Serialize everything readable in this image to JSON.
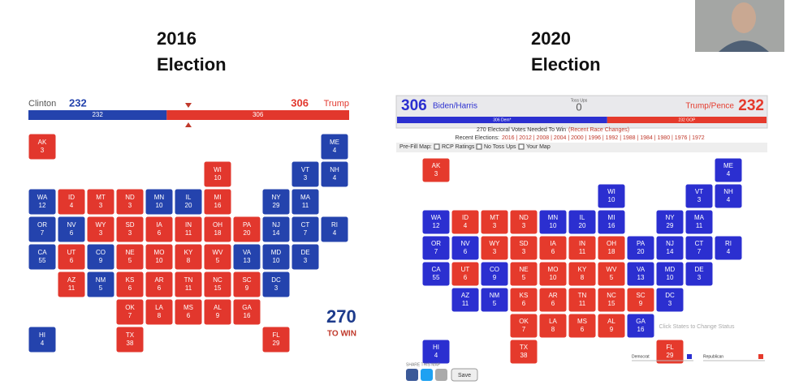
{
  "states": [
    {
      "abbr": "AK",
      "ev": 3
    },
    {
      "abbr": "ME",
      "ev": 4
    },
    {
      "abbr": "WI",
      "ev": 10
    },
    {
      "abbr": "VT",
      "ev": 3
    },
    {
      "abbr": "NH",
      "ev": 4
    },
    {
      "abbr": "WA",
      "ev": 12
    },
    {
      "abbr": "ID",
      "ev": 4
    },
    {
      "abbr": "MT",
      "ev": 3
    },
    {
      "abbr": "ND",
      "ev": 3
    },
    {
      "abbr": "MN",
      "ev": 10
    },
    {
      "abbr": "IL",
      "ev": 20
    },
    {
      "abbr": "MI",
      "ev": 16
    },
    {
      "abbr": "NY",
      "ev": 29
    },
    {
      "abbr": "MA",
      "ev": 11
    },
    {
      "abbr": "OR",
      "ev": 7
    },
    {
      "abbr": "NV",
      "ev": 6
    },
    {
      "abbr": "WY",
      "ev": 3
    },
    {
      "abbr": "SD",
      "ev": 3
    },
    {
      "abbr": "IA",
      "ev": 6
    },
    {
      "abbr": "IN",
      "ev": 11
    },
    {
      "abbr": "OH",
      "ev": 18
    },
    {
      "abbr": "PA",
      "ev": 20
    },
    {
      "abbr": "NJ",
      "ev": 14
    },
    {
      "abbr": "CT",
      "ev": 7
    },
    {
      "abbr": "RI",
      "ev": 4
    },
    {
      "abbr": "CA",
      "ev": 55
    },
    {
      "abbr": "UT",
      "ev": 6
    },
    {
      "abbr": "CO",
      "ev": 9
    },
    {
      "abbr": "NE",
      "ev": 5
    },
    {
      "abbr": "MO",
      "ev": 10
    },
    {
      "abbr": "KY",
      "ev": 8
    },
    {
      "abbr": "WV",
      "ev": 5
    },
    {
      "abbr": "VA",
      "ev": 13
    },
    {
      "abbr": "MD",
      "ev": 10
    },
    {
      "abbr": "DE",
      "ev": 3
    },
    {
      "abbr": "AZ",
      "ev": 11
    },
    {
      "abbr": "NM",
      "ev": 5
    },
    {
      "abbr": "KS",
      "ev": 6
    },
    {
      "abbr": "AR",
      "ev": 6
    },
    {
      "abbr": "TN",
      "ev": 11
    },
    {
      "abbr": "NC",
      "ev": 15
    },
    {
      "abbr": "SC",
      "ev": 9
    },
    {
      "abbr": "DC",
      "ev": 3
    },
    {
      "abbr": "OK",
      "ev": 7
    },
    {
      "abbr": "LA",
      "ev": 8
    },
    {
      "abbr": "MS",
      "ev": 6
    },
    {
      "abbr": "AL",
      "ev": 9
    },
    {
      "abbr": "GA",
      "ev": 16
    },
    {
      "abbr": "HI",
      "ev": 4
    },
    {
      "abbr": "TX",
      "ev": 38
    },
    {
      "abbr": "FL",
      "ev": 29
    }
  ],
  "left": {
    "title_year": "2016",
    "title_word": "Election",
    "dem_name": "Clinton",
    "dem_ev": 232,
    "rep_ev": 306,
    "rep_name": "Trump",
    "dem_color": "#2443ad",
    "rep_color": "#e2372d",
    "logo_top": "270",
    "logo_bottom": "TO WIN",
    "state_colors": [
      "#e2372d",
      "#2443ad",
      "#e2372d",
      "#2443ad",
      "#2443ad",
      "#2443ad",
      "#e2372d",
      "#e2372d",
      "#e2372d",
      "#2443ad",
      "#2443ad",
      "#e2372d",
      "#2443ad",
      "#2443ad",
      "#2443ad",
      "#2443ad",
      "#e2372d",
      "#e2372d",
      "#e2372d",
      "#e2372d",
      "#e2372d",
      "#e2372d",
      "#2443ad",
      "#2443ad",
      "#2443ad",
      "#2443ad",
      "#e2372d",
      "#2443ad",
      "#e2372d",
      "#e2372d",
      "#e2372d",
      "#e2372d",
      "#2443ad",
      "#2443ad",
      "#2443ad",
      "#e2372d",
      "#2443ad",
      "#e2372d",
      "#e2372d",
      "#e2372d",
      "#e2372d",
      "#e2372d",
      "#2443ad",
      "#e2372d",
      "#e2372d",
      "#e2372d",
      "#e2372d",
      "#e2372d",
      "#2443ad",
      "#e2372d",
      "#e2372d"
    ]
  },
  "right": {
    "title_year": "2020",
    "title_word": "Election",
    "dem_ev": 306,
    "dem_name": "Biden/Harris",
    "tossup_label": "Toss Ups",
    "tossup_ev": 0,
    "rep_name": "Trump/Pence",
    "rep_ev": 232,
    "bar_dem_label": "306 Dem*",
    "bar_rep_label": "232 GOP",
    "dem_color": "#2b2fd0",
    "rep_color": "#e53a2c",
    "tossup_color": "#9a9a9a",
    "needed": "270 Electoral Votes Needed To Win",
    "needed_link": "(Recent Race Changes)",
    "recent_label": "Recent Elections:",
    "recent_years": "2016 | 2012 | 2008 | 2004 | 2000 | 1996 | 1992 | 1988 | 1984 | 1980 | 1976 | 1972",
    "prefill_label": "Pre-Fill Map:",
    "options": [
      "RCP Ratings",
      "No Toss Ups",
      "Your Map"
    ],
    "share": "SHARE THIS MAP",
    "save": "Save",
    "hint": "Click States to Change Status",
    "legend": [
      "Democrat",
      "Republican"
    ],
    "state_colors": [
      "#e53a2c",
      "#2b2fd0",
      "#2b2fd0",
      "#2b2fd0",
      "#2b2fd0",
      "#2b2fd0",
      "#e53a2c",
      "#e53a2c",
      "#e53a2c",
      "#2b2fd0",
      "#2b2fd0",
      "#2b2fd0",
      "#2b2fd0",
      "#2b2fd0",
      "#2b2fd0",
      "#2b2fd0",
      "#e53a2c",
      "#e53a2c",
      "#e53a2c",
      "#e53a2c",
      "#e53a2c",
      "#2b2fd0",
      "#2b2fd0",
      "#2b2fd0",
      "#2b2fd0",
      "#2b2fd0",
      "#e53a2c",
      "#2b2fd0",
      "#e53a2c",
      "#e53a2c",
      "#e53a2c",
      "#e53a2c",
      "#2b2fd0",
      "#2b2fd0",
      "#2b2fd0",
      "#2b2fd0",
      "#2b2fd0",
      "#e53a2c",
      "#e53a2c",
      "#e53a2c",
      "#e53a2c",
      "#e53a2c",
      "#2b2fd0",
      "#e53a2c",
      "#e53a2c",
      "#e53a2c",
      "#e53a2c",
      "#2b2fd0",
      "#2b2fd0",
      "#e53a2c",
      "#e53a2c"
    ]
  }
}
